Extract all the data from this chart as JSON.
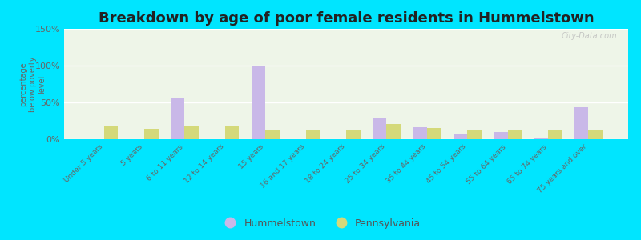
{
  "title": "Breakdown by age of poor female residents in Hummelstown",
  "ylabel": "percentage\nbelow poverty\nlevel",
  "categories": [
    "Under 5 years",
    "5 years",
    "6 to 11 years",
    "12 to 14 years",
    "15 years",
    "16 and 17 years",
    "18 to 24 years",
    "25 to 34 years",
    "35 to 44 years",
    "45 to 54 years",
    "55 to 64 years",
    "65 to 74 years",
    "75 years and over"
  ],
  "hummelstown": [
    0,
    0,
    57,
    0,
    100,
    0,
    0,
    29,
    16,
    8,
    10,
    2,
    43
  ],
  "pennsylvania": [
    18,
    14,
    18,
    18,
    13,
    13,
    13,
    21,
    15,
    12,
    12,
    13,
    13
  ],
  "hummelstown_color": "#c9b8e8",
  "pennsylvania_color": "#d4d97a",
  "bar_width": 0.35,
  "ylim": [
    0,
    150
  ],
  "yticks": [
    0,
    50,
    100,
    150
  ],
  "ytick_labels": [
    "0%",
    "50%",
    "100%",
    "150%"
  ],
  "bg_color": "#eef5e8",
  "outer_bg": "#00e5ff",
  "title_fontsize": 13,
  "axis_fontsize": 8,
  "watermark": "City-Data.com"
}
